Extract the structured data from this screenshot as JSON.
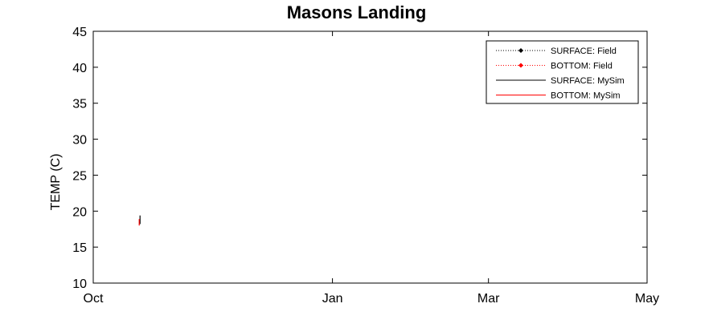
{
  "chart_data": {
    "type": "line",
    "title": "Masons Landing",
    "xlabel": "",
    "ylabel": "TEMP (C)",
    "ylim": [
      10,
      45
    ],
    "yticks": [
      10,
      15,
      20,
      25,
      30,
      35,
      40,
      45
    ],
    "xlim": [
      "2011-10-01",
      "2012-05-01"
    ],
    "xticks": [
      {
        "label": "Oct",
        "date": "2011-10-01"
      },
      {
        "label": "Jan",
        "date": "2012-01-01"
      },
      {
        "label": "Mar",
        "date": "2012-03-01"
      },
      {
        "label": "May",
        "date": "2012-05-01"
      }
    ],
    "grid": false,
    "legend_position": "top-right",
    "series": [
      {
        "name": "SURFACE: Field",
        "color": "#000000",
        "style": "dotted-marker",
        "points": []
      },
      {
        "name": "BOTTOM: Field",
        "color": "#ff0000",
        "style": "dotted-marker",
        "points": []
      },
      {
        "name": "SURFACE: MySim",
        "color": "#000000",
        "style": "solid",
        "points": [
          {
            "x": "2011-10-19",
            "y": 18.2
          },
          {
            "x": "2011-10-19",
            "y": 19.4
          }
        ]
      },
      {
        "name": "BOTTOM: MySim",
        "color": "#ff0000",
        "style": "solid",
        "points": [
          {
            "x": "2011-10-19",
            "y": 18.0
          },
          {
            "x": "2011-10-19",
            "y": 18.9
          }
        ]
      }
    ]
  }
}
